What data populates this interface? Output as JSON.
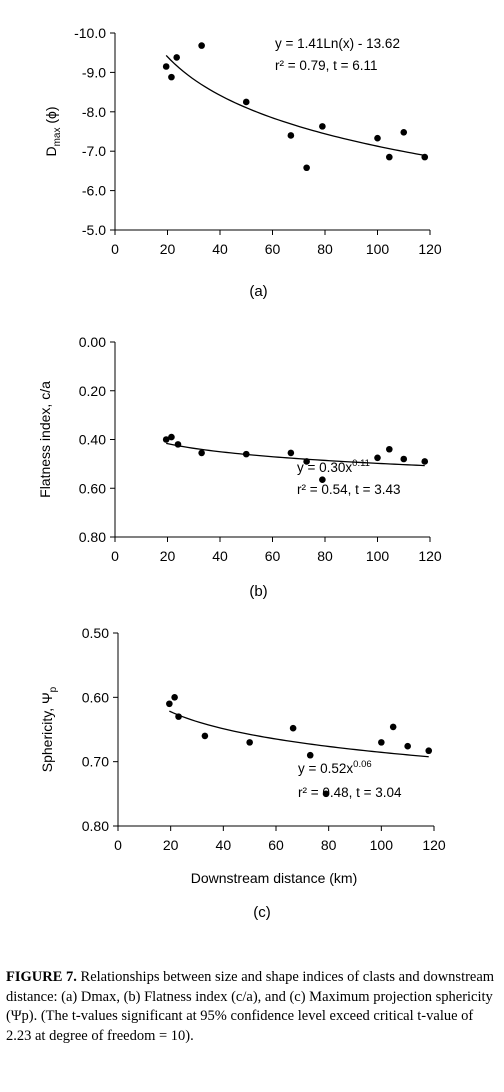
{
  "chart_data": [
    {
      "type": "scatter",
      "panel_label": "(a)",
      "ylabel": {
        "main": "D",
        "sub": "max",
        "unit": " (ϕ)"
      },
      "xlabel": "",
      "xlim": [
        0,
        120
      ],
      "ylim": [
        -10.0,
        -5.0
      ],
      "y_axis_inverted": true,
      "xticks": [
        "0",
        "20",
        "40",
        "60",
        "80",
        "100",
        "120"
      ],
      "yticks": [
        "-10.0",
        "-9.0",
        "-8.0",
        "-7.0",
        "-6.0",
        "-5.0"
      ],
      "points": [
        [
          19.5,
          -9.15
        ],
        [
          21.5,
          -8.88
        ],
        [
          23.5,
          -9.38
        ],
        [
          33,
          -9.68
        ],
        [
          50,
          -8.25
        ],
        [
          67,
          -7.4
        ],
        [
          73,
          -6.58
        ],
        [
          79,
          -7.63
        ],
        [
          100,
          -7.33
        ],
        [
          104.5,
          -6.85
        ],
        [
          110,
          -7.48
        ],
        [
          118,
          -6.85
        ]
      ],
      "trendline": {
        "kind": "log",
        "a": 1.41,
        "b": -13.62,
        "x_range": [
          19.5,
          118
        ]
      },
      "equation_line1": "y = 1.41Ln(x) - 13.62",
      "equation_line2": "r² = 0.79, t = 6.11"
    },
    {
      "type": "scatter",
      "panel_label": "(b)",
      "ylabel": {
        "main": "Flatness index, c/a",
        "sub": "",
        "unit": ""
      },
      "xlabel": "",
      "xlim": [
        0,
        120
      ],
      "ylim": [
        0.0,
        0.8
      ],
      "xticks": [
        "0",
        "20",
        "40",
        "60",
        "80",
        "100",
        "120"
      ],
      "yticks": [
        "0.00",
        "0.20",
        "0.40",
        "0.60",
        "0.80"
      ],
      "points": [
        [
          19.5,
          0.4
        ],
        [
          21.5,
          0.39
        ],
        [
          24,
          0.42
        ],
        [
          33,
          0.455
        ],
        [
          50,
          0.46
        ],
        [
          67,
          0.455
        ],
        [
          73,
          0.49
        ],
        [
          79,
          0.565
        ],
        [
          100,
          0.475
        ],
        [
          104.5,
          0.44
        ],
        [
          110,
          0.48
        ],
        [
          118,
          0.49
        ]
      ],
      "trendline": {
        "kind": "power",
        "a": 0.3,
        "b": 0.11,
        "x_range": [
          19.5,
          118
        ]
      },
      "equation_line1": {
        "base": "y = 0.30x",
        "exp": "0.11"
      },
      "equation_line2": "r² = 0.54, t = 3.43"
    },
    {
      "type": "scatter",
      "panel_label": "(c)",
      "ylabel": {
        "main": "Sphericity, Ψ",
        "sub": "p",
        "unit": ""
      },
      "xlabel": "Downstream distance (km)",
      "xlim": [
        0,
        120
      ],
      "ylim": [
        0.5,
        0.8
      ],
      "xticks": [
        "0",
        "20",
        "40",
        "60",
        "80",
        "100",
        "120"
      ],
      "yticks": [
        "0.50",
        "0.60",
        "0.70",
        "0.80"
      ],
      "points": [
        [
          19.5,
          0.61
        ],
        [
          21.5,
          0.6
        ],
        [
          23,
          0.63
        ],
        [
          33,
          0.66
        ],
        [
          50,
          0.67
        ],
        [
          66.5,
          0.648
        ],
        [
          73,
          0.69
        ],
        [
          79,
          0.75
        ],
        [
          100,
          0.67
        ],
        [
          104.5,
          0.646
        ],
        [
          110,
          0.676
        ],
        [
          118,
          0.683
        ]
      ],
      "trendline": {
        "kind": "power",
        "a": 0.52,
        "b": 0.06,
        "x_range": [
          19.5,
          118
        ]
      },
      "equation_line1": {
        "base": "y = 0.52x",
        "exp": "0.06"
      },
      "equation_line2": "r² = 0.48, t = 3.04"
    }
  ],
  "caption": {
    "label": "FIGURE 7.",
    "text": " Relationships between size and shape indices of clasts and downstream distance: (a) Dmax, (b) Flatness index (c/a), and (c) Maximum projection sphericity (Ψp). (The t-values significant at 95% confidence level exceed critical t-value of 2.23 at degree of freedom = 10)."
  }
}
